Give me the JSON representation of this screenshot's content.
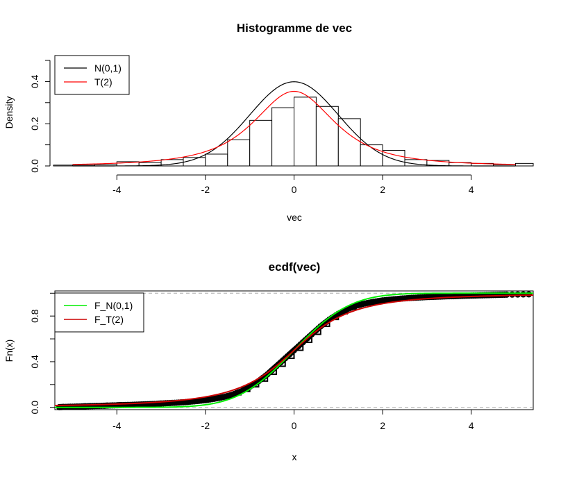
{
  "chart_data": [
    {
      "type": "bar",
      "title": "Histogramme de vec",
      "xlabel": "vec",
      "ylabel": "Density",
      "xlim": [
        -5.4,
        5.4
      ],
      "ylim": [
        0,
        0.5
      ],
      "x_ticks": [
        -4,
        -2,
        0,
        2,
        4
      ],
      "x_tick_labels": [
        "-4",
        "-2",
        "0",
        "2",
        "4"
      ],
      "y_ticks": [
        0.0,
        0.2,
        0.4
      ],
      "y_tick_labels": [
        "0.0",
        "0.2",
        "0.4"
      ],
      "bin_edges": [
        -5.5,
        -5.0,
        -4.5,
        -4.0,
        -3.5,
        -3.0,
        -2.5,
        -2.0,
        -1.5,
        -1.0,
        -0.5,
        0.0,
        0.5,
        1.0,
        1.5,
        2.0,
        2.5,
        3.0,
        3.5,
        4.0,
        4.5,
        5.0,
        5.5
      ],
      "values": [
        0.004,
        0.004,
        0.006,
        0.02,
        0.016,
        0.03,
        0.04,
        0.056,
        0.124,
        0.216,
        0.276,
        0.326,
        0.282,
        0.224,
        0.1,
        0.074,
        0.03,
        0.026,
        0.016,
        0.012,
        0.006,
        0.012
      ],
      "series": [
        {
          "name": "N(0,1)",
          "kind": "density",
          "distribution": "normal",
          "color": "#000000"
        },
        {
          "name": "T(2)",
          "kind": "density",
          "distribution": "student-t",
          "df": 2,
          "color": "#ff0000"
        }
      ],
      "legend": {
        "position": "top-left",
        "entries": [
          "N(0,1)",
          "T(2)"
        ],
        "colors": [
          "#000000",
          "#ff0000"
        ]
      },
      "grid": false
    },
    {
      "type": "scatter",
      "title": "ecdf(vec)",
      "xlabel": "x",
      "ylabel": "Fn(x)",
      "xlim": [
        -5.4,
        5.4
      ],
      "ylim": [
        -0.02,
        1.02
      ],
      "x_ticks": [
        -4,
        -2,
        0,
        2,
        4
      ],
      "x_tick_labels": [
        "-4",
        "-2",
        "0",
        "2",
        "4"
      ],
      "y_ticks": [
        0.0,
        0.4,
        0.8
      ],
      "y_tick_labels": [
        "0.0",
        "0.4",
        "0.8"
      ],
      "reference_lines": [
        0,
        1
      ],
      "ecdf_points": [
        [
          -5.3,
          0.002
        ],
        [
          -5.2,
          0.004
        ],
        [
          -5.0,
          0.006
        ],
        [
          -4.8,
          0.008
        ],
        [
          -4.7,
          0.01
        ],
        [
          -4.5,
          0.012
        ],
        [
          -4.3,
          0.014
        ],
        [
          -4.2,
          0.016
        ],
        [
          -4.0,
          0.018
        ],
        [
          -3.9,
          0.02
        ],
        [
          -3.7,
          0.022
        ],
        [
          -3.5,
          0.025
        ],
        [
          -3.3,
          0.028
        ],
        [
          -3.1,
          0.031
        ],
        [
          -3.0,
          0.034
        ],
        [
          -2.8,
          0.038
        ],
        [
          -2.6,
          0.042
        ],
        [
          -2.4,
          0.048
        ],
        [
          -2.2,
          0.055
        ],
        [
          -2.0,
          0.063
        ],
        [
          -1.8,
          0.075
        ],
        [
          -1.6,
          0.09
        ],
        [
          -1.4,
          0.11
        ],
        [
          -1.2,
          0.14
        ],
        [
          -1.0,
          0.18
        ],
        [
          -0.8,
          0.23
        ],
        [
          -0.6,
          0.29
        ],
        [
          -0.4,
          0.36
        ],
        [
          -0.2,
          0.43
        ],
        [
          0.0,
          0.5
        ],
        [
          0.2,
          0.57
        ],
        [
          0.4,
          0.64
        ],
        [
          0.6,
          0.71
        ],
        [
          0.8,
          0.77
        ],
        [
          1.0,
          0.82
        ],
        [
          1.2,
          0.86
        ],
        [
          1.4,
          0.89
        ],
        [
          1.6,
          0.91
        ],
        [
          1.8,
          0.925
        ],
        [
          2.0,
          0.937
        ],
        [
          2.2,
          0.945
        ],
        [
          2.4,
          0.952
        ],
        [
          2.6,
          0.958
        ],
        [
          2.8,
          0.962
        ],
        [
          3.0,
          0.966
        ],
        [
          3.2,
          0.969
        ],
        [
          3.4,
          0.972
        ],
        [
          3.6,
          0.974
        ],
        [
          3.8,
          0.977
        ],
        [
          4.0,
          0.979
        ],
        [
          4.2,
          0.981
        ],
        [
          4.4,
          0.983
        ],
        [
          4.6,
          0.985
        ],
        [
          4.8,
          0.987
        ],
        [
          5.3,
          0.99
        ]
      ],
      "series": [
        {
          "name": "F_N(0,1)",
          "kind": "cdf",
          "distribution": "normal",
          "color": "#00ee00"
        },
        {
          "name": "F_T(2)",
          "kind": "cdf",
          "distribution": "student-t",
          "df": 2,
          "color": "#cc0000"
        }
      ],
      "legend": {
        "position": "top-left",
        "entries": [
          "F_N(0,1)",
          "F_T(2)"
        ],
        "colors": [
          "#00ee00",
          "#cc0000"
        ]
      },
      "grid": false
    }
  ]
}
